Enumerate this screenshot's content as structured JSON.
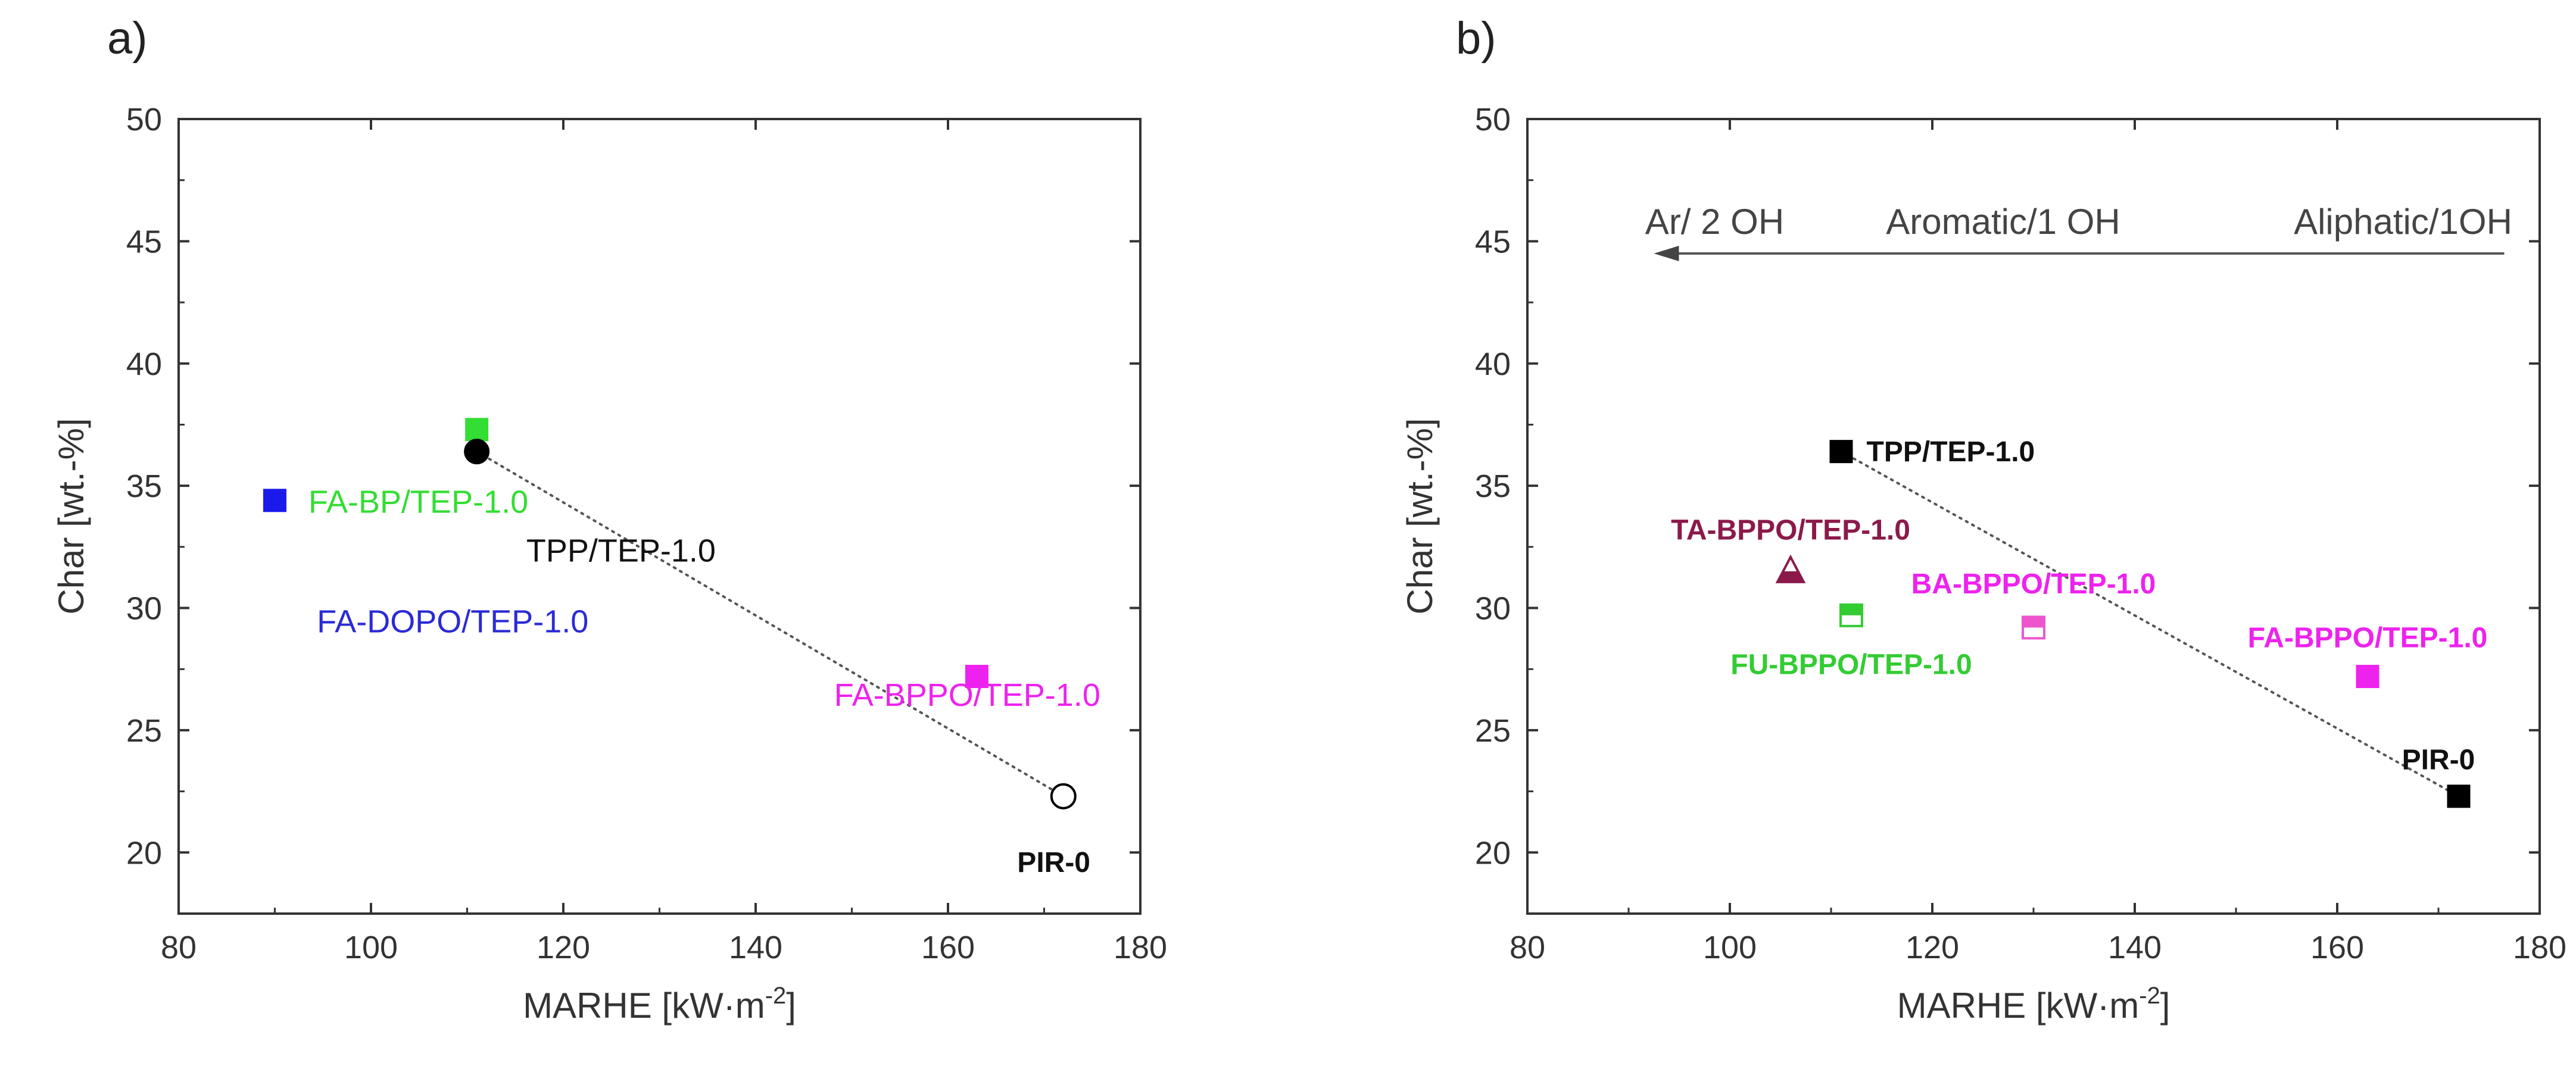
{
  "chart_data": [
    {
      "type": "scatter",
      "panel_label": "a)",
      "xlabel": "MARHE [kW·m⁻²]",
      "xlabel_main": "MARHE [kW",
      "xlabel_dot": "·",
      "xlabel_unit": "m",
      "xlabel_exp": "-2",
      "xlabel_close": "]",
      "ylabel": "Char [wt.-%]",
      "xlim": [
        80,
        180
      ],
      "ylim": [
        17.5,
        50
      ],
      "xticks": [
        80,
        100,
        120,
        140,
        160,
        180
      ],
      "yticks": [
        20,
        25,
        30,
        35,
        40,
        45,
        50
      ],
      "points": [
        {
          "name": "FA-DOPO/TEP-1.0",
          "x": 90,
          "y": 34.4,
          "marker": "square",
          "fill": "#1a1aeb",
          "stroke": "#1a1aeb",
          "label_color": "#2a2ad6",
          "label_bold": false,
          "label_pos": {
            "x": 108.5,
            "y": 29.0
          },
          "label_anchor": "middle"
        },
        {
          "name": "FA-BP/TEP-1.0",
          "x": 111,
          "y": 37.3,
          "marker": "square",
          "fill": "#33dd33",
          "stroke": "#33dd33",
          "label_color": "#33dd33",
          "label_bold": false,
          "label_pos": {
            "x": 93.5,
            "y": 33.9
          },
          "label_anchor": "start"
        },
        {
          "name": "TPP/TEP-1.0",
          "x": 111,
          "y": 36.4,
          "marker": "circle",
          "fill": "#000000",
          "stroke": "#000000",
          "label_color": "#111111",
          "label_bold": false,
          "label_pos": {
            "x": 126,
            "y": 31.9
          },
          "label_anchor": "middle"
        },
        {
          "name": "FA-BPPO/TEP-1.0",
          "x": 163,
          "y": 27.2,
          "marker": "square",
          "fill": "#ee22ee",
          "stroke": "#ee22ee",
          "label_color": "#ee22ee",
          "label_bold": false,
          "label_pos": {
            "x": 162,
            "y": 26.0
          },
          "label_anchor": "middle"
        },
        {
          "name": "PIR-0",
          "x": 172,
          "y": 22.3,
          "marker": "circle-open",
          "fill": "none",
          "stroke": "#000000",
          "label_color": "#111111",
          "label_bold": true,
          "label_pos": {
            "x": 171,
            "y": 19.2
          },
          "label_anchor": "middle"
        }
      ],
      "trend_line": {
        "x": [
          111,
          172
        ],
        "y": [
          36.4,
          22.3
        ]
      }
    },
    {
      "type": "scatter",
      "panel_label": "b)",
      "xlabel": "MARHE [kW·m⁻²]",
      "xlabel_main": "MARHE [kW",
      "xlabel_dot": "·",
      "xlabel_unit": "m",
      "xlabel_exp": "-2",
      "xlabel_close": "]",
      "ylabel": "Char [wt.-%]",
      "xlim": [
        80,
        180
      ],
      "ylim": [
        17.5,
        50
      ],
      "xticks": [
        80,
        100,
        120,
        140,
        160,
        180
      ],
      "yticks": [
        20,
        25,
        30,
        35,
        40,
        45,
        50
      ],
      "points": [
        {
          "name": "TPP/TEP-1.0",
          "x": 111,
          "y": 36.4,
          "marker": "square",
          "fill": "#000000",
          "stroke": "#000000",
          "label_color": "#111111",
          "label_bold": true,
          "label_pos": {
            "x": 113.5,
            "y": 36.0
          },
          "label_anchor": "start"
        },
        {
          "name": "TA-BPPO/TEP-1.0",
          "x": 106,
          "y": 31.5,
          "marker": "triangle-half",
          "fill": "#8b1a4a",
          "stroke": "#8b1a4a",
          "label_color": "#8b1a4a",
          "label_bold": true,
          "label_pos": {
            "x": 106,
            "y": 32.8
          },
          "label_anchor": "middle"
        },
        {
          "name": "FU-BPPO/TEP-1.0",
          "x": 112,
          "y": 29.7,
          "marker": "square-half",
          "fill": "#33cc33",
          "stroke": "#33cc33",
          "label_color": "#33cc33",
          "label_bold": true,
          "label_pos": {
            "x": 112,
            "y": 27.3
          },
          "label_anchor": "middle"
        },
        {
          "name": "BA-BPPO/TEP-1.0",
          "x": 130,
          "y": 29.2,
          "marker": "square-half",
          "fill": "#ee55cc",
          "stroke": "#ee55cc",
          "label_color": "#ee22ee",
          "label_bold": true,
          "label_pos": {
            "x": 130,
            "y": 30.6
          },
          "label_anchor": "middle"
        },
        {
          "name": "FA-BPPO/TEP-1.0",
          "x": 163,
          "y": 27.2,
          "marker": "square",
          "fill": "#ee22ee",
          "stroke": "#ee22ee",
          "label_color": "#ee22ee",
          "label_bold": true,
          "label_pos": {
            "x": 163,
            "y": 28.4
          },
          "label_anchor": "middle"
        },
        {
          "name": "PIR-0",
          "x": 172,
          "y": 22.3,
          "marker": "square",
          "fill": "#000000",
          "stroke": "#000000",
          "label_color": "#111111",
          "label_bold": true,
          "label_pos": {
            "x": 170,
            "y": 23.4
          },
          "label_anchor": "middle"
        }
      ],
      "trend_line": {
        "x": [
          111,
          172
        ],
        "y": [
          36.4,
          22.3
        ]
      },
      "arrow": {
        "from": {
          "x": 176.5,
          "y": 44.5
        },
        "to": {
          "x": 92.5,
          "y": 44.5
        },
        "labels": [
          {
            "text": "Ar/ 2 OH",
            "x": 98.5,
            "y": 45.3
          },
          {
            "text": "Aromatic/1 OH",
            "x": 127,
            "y": 45.3
          },
          {
            "text": "Aliphatic/1OH",
            "x": 166.5,
            "y": 45.3
          }
        ]
      }
    }
  ]
}
